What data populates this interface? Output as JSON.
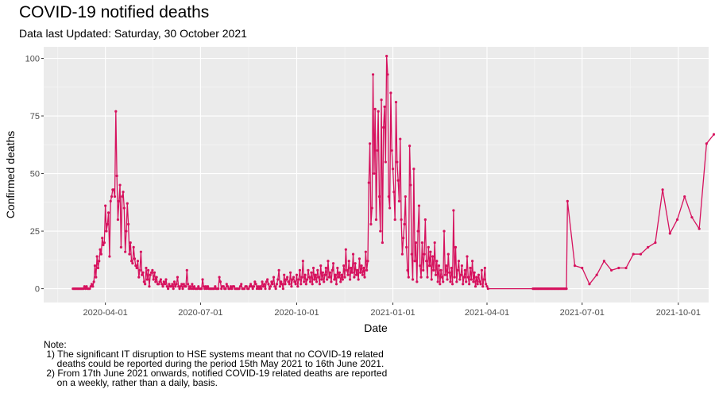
{
  "chart_data": {
    "type": "line",
    "title": "COVID-19 notified deaths",
    "subtitle": "Data last Updated: Saturday, 30 October 2021",
    "xlabel": "Date",
    "ylabel": "Confirmed deaths",
    "ylim": [
      -6,
      105
    ],
    "xlim": [
      "2020-02-02",
      "2021-10-30"
    ],
    "grid": true,
    "legend": "none",
    "line_color": "#d6125e",
    "panel_color": "#ebebeb",
    "x_ticks": [
      {
        "date": "2020-04-01",
        "label": "2020-04-01"
      },
      {
        "date": "2020-07-01",
        "label": "2020-07-01"
      },
      {
        "date": "2020-10-01",
        "label": "2020-10-01"
      },
      {
        "date": "2021-01-01",
        "label": "2021-01-01"
      },
      {
        "date": "2021-04-01",
        "label": "2021-04-01"
      },
      {
        "date": "2021-07-01",
        "label": "2021-07-01"
      },
      {
        "date": "2021-10-01",
        "label": "2021-10-01"
      }
    ],
    "y_ticks": [
      {
        "value": 0,
        "label": "0"
      },
      {
        "value": 25,
        "label": "25"
      },
      {
        "value": 50,
        "label": "50"
      },
      {
        "value": 75,
        "label": "75"
      },
      {
        "value": 100,
        "label": "100"
      }
    ],
    "series": [
      {
        "start_date": "2020-03-01",
        "daily": [
          0,
          0,
          0,
          0,
          0,
          0,
          0,
          0,
          0,
          0,
          0,
          1,
          0,
          1,
          0,
          0,
          0,
          1,
          2,
          1,
          3,
          10,
          5,
          14,
          9,
          12,
          17,
          15,
          22,
          19,
          20,
          36,
          25,
          28,
          33,
          14,
          38,
          40,
          43,
          43,
          40,
          77,
          49,
          30,
          38,
          45,
          18,
          40,
          42,
          35,
          16,
          25,
          37,
          28,
          15,
          20,
          12,
          11,
          18,
          13,
          10,
          9,
          12,
          5,
          8,
          16,
          6,
          7,
          3,
          2,
          9,
          4,
          8,
          1,
          6,
          7,
          8,
          4,
          7,
          3,
          5,
          2,
          2,
          3,
          4,
          2,
          1,
          3,
          2,
          4,
          1,
          0,
          2,
          1,
          1,
          2,
          0,
          3,
          1,
          2,
          5,
          1,
          0,
          1,
          2,
          0,
          2,
          1,
          1,
          8,
          2,
          0,
          1,
          0,
          2,
          0,
          1,
          0,
          0,
          0,
          1,
          0,
          0,
          0,
          4,
          1,
          0,
          1,
          0,
          1,
          0,
          0,
          0,
          0,
          0,
          0,
          1,
          0,
          0,
          0,
          5,
          3,
          0,
          1,
          1,
          0,
          0,
          2,
          1,
          0,
          0,
          1,
          0,
          1,
          1,
          0,
          0,
          0,
          0,
          0,
          1,
          2,
          0,
          0,
          0,
          1,
          1,
          0,
          0,
          1,
          2,
          1,
          0,
          1,
          3,
          2,
          0,
          1,
          0,
          1,
          0,
          3,
          1,
          2,
          0,
          3,
          4,
          2,
          0,
          1,
          3,
          2,
          5,
          1,
          0,
          2,
          4,
          8,
          1,
          3,
          2,
          0,
          6,
          2,
          4,
          5,
          3,
          2,
          7,
          1,
          4,
          5,
          3,
          2,
          6,
          1,
          4,
          8,
          2,
          5,
          12,
          3,
          6,
          2,
          4,
          8,
          5,
          3,
          7,
          2,
          9,
          4,
          6,
          3,
          8,
          5,
          2,
          10,
          4,
          7,
          3,
          6,
          9,
          4,
          12,
          5,
          7,
          3,
          8,
          11,
          4,
          6,
          2,
          9,
          5,
          7,
          3,
          6,
          4,
          10,
          5,
          17,
          8,
          6,
          12,
          4,
          9,
          7,
          15,
          5,
          11,
          6,
          8,
          4,
          13,
          7,
          10,
          6,
          9,
          5,
          16,
          8,
          12,
          46,
          63,
          28,
          35,
          93,
          50,
          78,
          30,
          60,
          77,
          40,
          25,
          82,
          20,
          70,
          79,
          55,
          101,
          93,
          40,
          35,
          85,
          60,
          52,
          42,
          30,
          81,
          55,
          47,
          38,
          65,
          30,
          15,
          22,
          28,
          40,
          18,
          8,
          5,
          62,
          45,
          15,
          4,
          52,
          12,
          20,
          3,
          25,
          36,
          10,
          5,
          20,
          8,
          15,
          30,
          12,
          5,
          18,
          10,
          16,
          4,
          14,
          8,
          20,
          6,
          12,
          3,
          10,
          2,
          8,
          5,
          3,
          25,
          6,
          10,
          4,
          15,
          7,
          3,
          9,
          2,
          34,
          5,
          18,
          3,
          8,
          12,
          4,
          6,
          10,
          2,
          5,
          8,
          3,
          14,
          5,
          2,
          9,
          4,
          12,
          3,
          7,
          1,
          5,
          2,
          6,
          3,
          2,
          8,
          1,
          4,
          9,
          2,
          1,
          0
        ],
        "zero_fill": {
          "from": "2021-05-15",
          "to": "2021-06-16",
          "value": 0
        },
        "weekly": [
          {
            "x": "2021-06-17",
            "y": 38
          },
          {
            "x": "2021-06-24",
            "y": 10
          },
          {
            "x": "2021-07-01",
            "y": 9
          },
          {
            "x": "2021-07-08",
            "y": 2
          },
          {
            "x": "2021-07-15",
            "y": 6
          },
          {
            "x": "2021-07-22",
            "y": 12
          },
          {
            "x": "2021-07-29",
            "y": 8
          },
          {
            "x": "2021-08-05",
            "y": 9
          },
          {
            "x": "2021-08-12",
            "y": 9
          },
          {
            "x": "2021-08-19",
            "y": 15
          },
          {
            "x": "2021-08-26",
            "y": 15
          },
          {
            "x": "2021-09-02",
            "y": 18
          },
          {
            "x": "2021-09-09",
            "y": 20
          },
          {
            "x": "2021-09-16",
            "y": 43
          },
          {
            "x": "2021-09-23",
            "y": 24
          },
          {
            "x": "2021-09-30",
            "y": 30
          },
          {
            "x": "2021-10-07",
            "y": 40
          },
          {
            "x": "2021-10-14",
            "y": 31
          },
          {
            "x": "2021-10-21",
            "y": 26
          },
          {
            "x": "2021-10-28",
            "y": 63
          },
          {
            "x": "2021-11-04",
            "y": 67
          }
        ]
      }
    ],
    "annotations": {
      "note_heading": "Note:",
      "note_1": " 1) The significant IT disruption to HSE systems meant that no COVID-19 related\n     deaths could be reported during the period 15th May 2021 to 16th June 2021.",
      "note_2": " 2) From 17th June 2021 onwards, notified COVID-19 related deaths are reported\n     on a weekly, rather than a daily, basis."
    }
  }
}
